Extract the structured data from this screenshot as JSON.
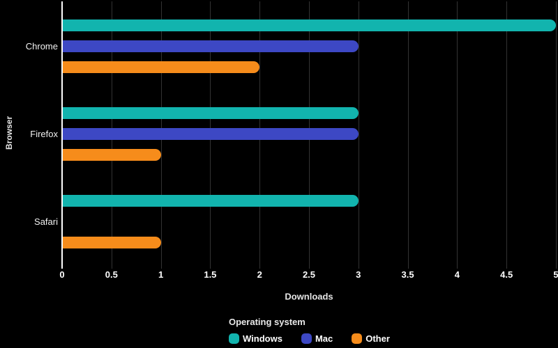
{
  "chart_data": {
    "type": "bar",
    "orientation": "horizontal",
    "categories": [
      "Chrome",
      "Firefox",
      "Safari"
    ],
    "series": [
      {
        "name": "Windows",
        "color": "#12b4ae",
        "values": [
          5,
          3,
          3
        ]
      },
      {
        "name": "Mac",
        "color": "#3d48c4",
        "values": [
          3,
          3,
          0
        ]
      },
      {
        "name": "Other",
        "color": "#f68c1b",
        "values": [
          2,
          1,
          1
        ]
      }
    ],
    "xlabel": "Downloads",
    "ylabel": "Browser",
    "xlim": [
      0,
      5
    ],
    "xtick_step": 0.5,
    "xticks": [
      "0",
      "0.5",
      "1",
      "1.5",
      "2",
      "2.5",
      "3",
      "3.5",
      "4",
      "4.5",
      "5"
    ],
    "legend_title": "Operating system",
    "legend_position": "bottom",
    "grid": true,
    "background_color": "#000000",
    "grid_color": "#333333",
    "axis_line_color": "#ffffff",
    "text_color": "#ffffff"
  }
}
